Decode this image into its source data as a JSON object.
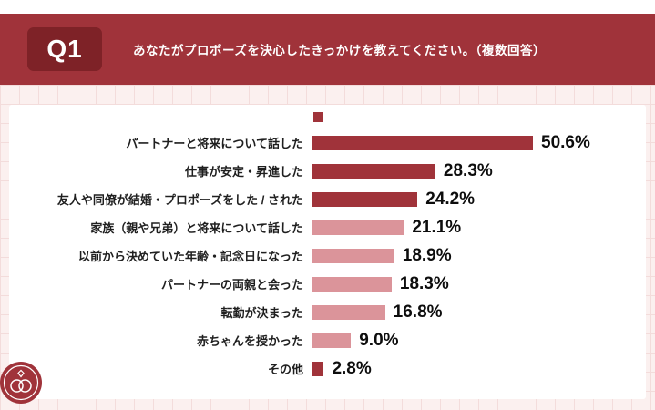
{
  "header": {
    "q_label": "Q1",
    "question": "あなたがプロポーズを決心したきっかけを教えてください。（複数回答）"
  },
  "chart_data": {
    "type": "bar",
    "orientation": "horizontal",
    "title": "",
    "categories": [
      "パートナーと将来について話した",
      "仕事が安定・昇進した",
      "友人や同僚が結婚・プロポーズをした / された",
      "家族（親や兄弟）と将来について話した",
      "以前から決めていた年齢・記念日になった",
      "パートナーの両親と会った",
      "転勤が決まった",
      "赤ちゃんを授かった",
      "その他"
    ],
    "values": [
      50.6,
      28.3,
      24.2,
      21.1,
      18.9,
      18.3,
      16.8,
      9.0,
      2.8
    ],
    "value_labels": [
      "50.6%",
      "28.3%",
      "24.2%",
      "21.1%",
      "18.9%",
      "18.3%",
      "16.8%",
      "9.0%",
      "2.8%"
    ],
    "bar_colors": [
      "#A0333A",
      "#A0333A",
      "#A0333A",
      "#DB949A",
      "#DB949A",
      "#DB949A",
      "#DB949A",
      "#DB949A",
      "#A0333A"
    ],
    "xlim": [
      0,
      55
    ],
    "grid": false,
    "legend": "none",
    "accent_color": "#A0333A",
    "light_bar_color": "#DB949A"
  },
  "footer": {
    "logo_icon": "wedding-rings-icon"
  }
}
